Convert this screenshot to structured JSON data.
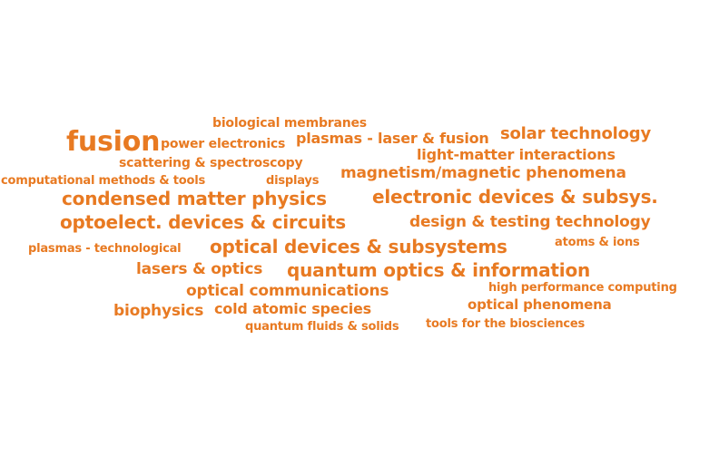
{
  "colors": {
    "text": "#E87A22",
    "background": "#FFFFFF"
  },
  "words": [
    "biological membranes",
    "fusion",
    "power electronics",
    "plasmas - laser & fusion",
    "solar technology",
    "light-matter interactions",
    "scattering & spectroscopy",
    "magnetism/magnetic phenomena",
    "computational methods & tools",
    "displays",
    "condensed matter physics",
    "electronic devices & subsys.",
    "optoelect. devices & circuits",
    "design & testing technology",
    "plasmas - technological",
    "optical devices & subsystems",
    "atoms & ions",
    "lasers & optics",
    "quantum optics & information",
    "high performance computing",
    "optical communications",
    "optical phenomena",
    "biophysics",
    "cold atomic species",
    "quantum fluids & solids",
    "tools for the biosciences"
  ]
}
